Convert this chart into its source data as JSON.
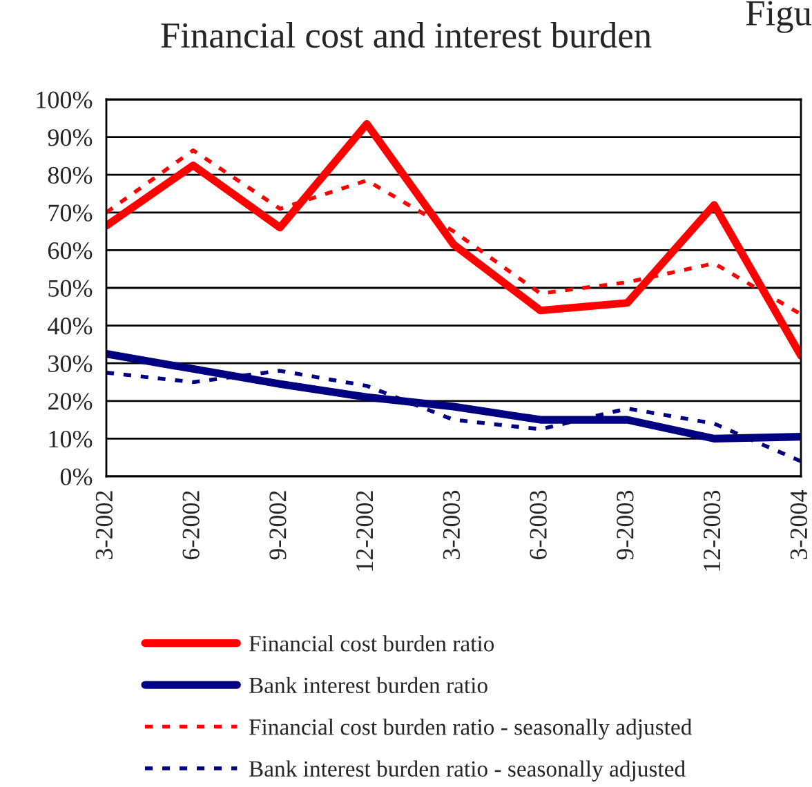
{
  "chart_data": {
    "type": "line",
    "title": "Financial cost and interest burden",
    "annotations": [
      "Figu"
    ],
    "categories": [
      "3-2002",
      "6-2002",
      "9-2002",
      "12-2002",
      "3-2003",
      "6-2003",
      "9-2003",
      "12-2003",
      "3-2004"
    ],
    "ylim": [
      0,
      100
    ],
    "yticks": [
      {
        "value": 0,
        "label": "0%"
      },
      {
        "value": 10,
        "label": "10%"
      },
      {
        "value": 20,
        "label": "20%"
      },
      {
        "value": 30,
        "label": "30%"
      },
      {
        "value": 40,
        "label": "40%"
      },
      {
        "value": 50,
        "label": "50%"
      },
      {
        "value": 60,
        "label": "60%"
      },
      {
        "value": 70,
        "label": "70%"
      },
      {
        "value": 80,
        "label": "80%"
      },
      {
        "value": 90,
        "label": "90%"
      },
      {
        "value": 100,
        "label": "100%"
      }
    ],
    "grid": "y",
    "legend": "bottom",
    "marker": "none",
    "series": [
      {
        "name": "Financial cost burden ratio",
        "color": "#ff0000",
        "line_style": "solid",
        "values": [
          66.5,
          82.5,
          66,
          93.5,
          61.5,
          44,
          46,
          72,
          32
        ]
      },
      {
        "name": "Bank interest burden ratio",
        "color": "#000080",
        "line_style": "solid",
        "values": [
          32.5,
          28.5,
          24.5,
          21,
          18.5,
          15,
          15,
          10,
          10.5
        ]
      },
      {
        "name": "Financial cost burden ratio - seasonally adjusted",
        "color": "#ff0000",
        "line_style": "dashed",
        "values": [
          70,
          86.5,
          71,
          78.5,
          65,
          48.5,
          51.5,
          56.5,
          43
        ]
      },
      {
        "name": "Bank interest burden ratio - seasonally adjusted",
        "color": "#000080",
        "line_style": "dashed",
        "values": [
          27.5,
          25,
          28,
          24,
          15,
          12.5,
          18,
          14,
          4
        ]
      }
    ]
  }
}
